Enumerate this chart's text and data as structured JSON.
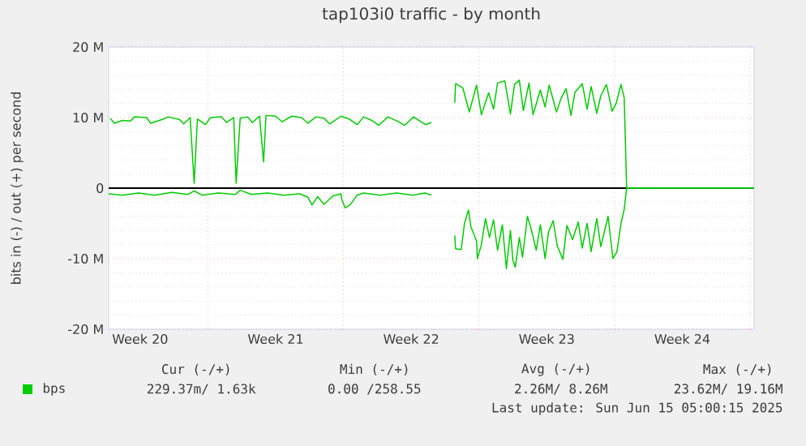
{
  "chart_data": {
    "type": "line",
    "title": "tap103i0 traffic - by month",
    "ylabel": "bits in (-) / out (+) per second",
    "xlim": [
      "2025-05-12T21:00",
      "2025-06-15T05:00"
    ],
    "ylim": [
      -20,
      20
    ],
    "xticks": [
      {
        "value": "2025-05-14T12:00",
        "label": "Week 20"
      },
      {
        "value": "2025-05-21T12:00",
        "label": "Week 21"
      },
      {
        "value": "2025-05-28T12:00",
        "label": "Week 22"
      },
      {
        "value": "2025-06-04T12:00",
        "label": "Week 23"
      },
      {
        "value": "2025-06-11T12:00",
        "label": "Week 24"
      },
      {
        "value": "2025-05-18",
        "label": null
      },
      {
        "value": "2025-05-25",
        "label": null
      },
      {
        "value": "2025-06-01",
        "label": null
      },
      {
        "value": "2025-06-08",
        "label": null
      },
      {
        "value": "2025-06-15",
        "label": null
      }
    ],
    "yticks": [
      {
        "value": -20,
        "label": "-20 M"
      },
      {
        "value": -10,
        "label": "-10 M"
      },
      {
        "value": 0,
        "label": "0"
      },
      {
        "value": 10,
        "label": "10 M"
      },
      {
        "value": 20,
        "label": "20 M"
      }
    ],
    "grid": true,
    "legend": "bottom",
    "ref_lines": [
      {
        "axis": "y",
        "value": 0,
        "color": "#000000"
      }
    ],
    "series": [
      {
        "name": "bps",
        "color": "#00cc00",
        "x": [
          "2025-05-12T23:00",
          "2025-05-13T04:00",
          "2025-05-13T14:00",
          "2025-05-14T00:00",
          "2025-05-14T05:00",
          "2025-05-14T20:00",
          "2025-05-15T01:00",
          "2025-05-15T17:00",
          "2025-05-15T23:00",
          "2025-05-16T13:00",
          "2025-05-16T18:00",
          "2025-05-17T02:00",
          "2025-05-17T07:00",
          "2025-05-17T11:00",
          "2025-05-17T21:00",
          "2025-05-18T03:00",
          "2025-05-18T17:00",
          "2025-05-18T23:00",
          "2025-05-19T08:00",
          "2025-05-19T11:00",
          "2025-05-19T16:00",
          "2025-05-20T01:00",
          "2025-05-20T07:00",
          "2025-05-20T16:00",
          "2025-05-20T21:00",
          "2025-05-21T00:00",
          "2025-05-21T12:00",
          "2025-05-21T20:00",
          "2025-05-22T08:00",
          "2025-05-22T20:00",
          "2025-05-23T04:00",
          "2025-05-23T14:00",
          "2025-05-24T00:00",
          "2025-05-24T07:00",
          "2025-05-24T21:00",
          "2025-05-25T07:00",
          "2025-05-25T17:00",
          "2025-05-26T01:00",
          "2025-05-26T11:00",
          "2025-05-26T20:00",
          "2025-05-27T07:00",
          "2025-05-27T19:00",
          "2025-05-28T04:00",
          "2025-05-28T15:00",
          "2025-05-29T00:00",
          "2025-05-29T06:00",
          "2025-05-29T13:00",
          "2025-05-30T04:00",
          "2025-05-30T18:00",
          "2025-05-30T19:00",
          "2025-05-31T04:00",
          "2025-05-31T12:00",
          "2025-05-31T21:00",
          "2025-06-01T03:00",
          "2025-06-01T12:00",
          "2025-06-01T18:00",
          "2025-06-01T23:00",
          "2025-06-02T08:00",
          "2025-06-02T15:00",
          "2025-06-02T20:00",
          "2025-06-03T02:00",
          "2025-06-03T07:00",
          "2025-06-03T14:00",
          "2025-06-03T19:00",
          "2025-06-04T04:00",
          "2025-06-04T10:00",
          "2025-06-04T15:00",
          "2025-06-05T00:00",
          "2025-06-05T06:00",
          "2025-06-05T12:00",
          "2025-06-05T18:00",
          "2025-06-05T23:00",
          "2025-06-06T08:00",
          "2025-06-06T14:00",
          "2025-06-06T19:00",
          "2025-06-07T02:00",
          "2025-06-07T07:00",
          "2025-06-07T14:00",
          "2025-06-07T21:00",
          "2025-06-08T02:00",
          "2025-06-08T08:00",
          "2025-06-08T12:00",
          "2025-06-08T15:00",
          "2025-06-15T05:00"
        ],
        "values": [
          9.9,
          9.2,
          9.6,
          9.5,
          10.1,
          10.0,
          9.2,
          9.8,
          10.1,
          9.7,
          9.1,
          10.0,
          0.7,
          9.8,
          9.0,
          10.0,
          10.1,
          9.3,
          10.0,
          0.7,
          9.9,
          10.1,
          9.3,
          10.2,
          3.7,
          10.3,
          10.2,
          9.4,
          10.2,
          10.0,
          9.2,
          10.1,
          9.9,
          9.1,
          10.2,
          9.8,
          9.0,
          10.1,
          9.6,
          8.9,
          10.1,
          9.5,
          8.9,
          10.1,
          9.4,
          9.0,
          9.3,
          null,
          12.1,
          14.8,
          14.2,
          10.8,
          14.6,
          10.4,
          13.5,
          11.2,
          14.9,
          15.2,
          10.5,
          14.7,
          15.3,
          11.0,
          14.9,
          10.4,
          13.9,
          11.5,
          14.6,
          10.8,
          12.8,
          14.1,
          10.3,
          13.6,
          14.8,
          11.2,
          14.4,
          10.6,
          13.1,
          14.7,
          10.9,
          12.0,
          14.7,
          12.8,
          0,
          0
        ]
      },
      {
        "color": "#00cc00",
        "x": [
          "2025-05-12T21:00",
          "2025-05-13T14:00",
          "2025-05-14T10:00",
          "2025-05-15T06:00",
          "2025-05-16T03:00",
          "2025-05-16T23:00",
          "2025-05-17T07:00",
          "2025-05-17T17:00",
          "2025-05-18T13:00",
          "2025-05-19T10:00",
          "2025-05-19T16:00",
          "2025-05-20T06:00",
          "2025-05-21T02:00",
          "2025-05-21T22:00",
          "2025-05-22T18:00",
          "2025-05-23T04:00",
          "2025-05-23T09:00",
          "2025-05-23T16:00",
          "2025-05-24T00:00",
          "2025-05-24T11:00",
          "2025-05-24T21:00",
          "2025-05-24T22:00",
          "2025-05-25T02:00",
          "2025-05-25T08:00",
          "2025-05-25T17:00",
          "2025-05-26T01:00",
          "2025-05-26T21:00",
          "2025-05-27T18:00",
          "2025-05-28T14:00",
          "2025-05-29T05:00",
          "2025-05-29T13:00",
          "2025-05-30T04:00",
          "2025-05-30T18:00",
          "2025-05-30T19:00",
          "2025-05-31T02:00",
          "2025-05-31T06:00",
          "2025-05-31T11:00",
          "2025-05-31T14:00",
          "2025-05-31T21:00",
          "2025-05-31T22:00",
          "2025-06-01T03:00",
          "2025-06-01T08:00",
          "2025-06-01T13:00",
          "2025-06-01T18:00",
          "2025-06-01T23:00",
          "2025-06-02T05:00",
          "2025-06-02T10:00",
          "2025-06-02T15:00",
          "2025-06-02T18:00",
          "2025-06-02T21:00",
          "2025-06-03T02:00",
          "2025-06-03T06:00",
          "2025-06-03T12:00",
          "2025-06-03T16:00",
          "2025-06-03T23:00",
          "2025-06-04T04:00",
          "2025-06-04T10:00",
          "2025-06-04T14:00",
          "2025-06-04T20:00",
          "2025-06-05T01:00",
          "2025-06-05T08:00",
          "2025-06-05T13:00",
          "2025-06-05T20:00",
          "2025-06-06T03:00",
          "2025-06-06T08:00",
          "2025-06-06T14:00",
          "2025-06-06T19:00",
          "2025-06-07T02:00",
          "2025-06-07T07:00",
          "2025-06-07T16:00",
          "2025-06-07T22:00",
          "2025-06-08T03:00",
          "2025-06-08T08:00",
          "2025-06-08T12:00",
          "2025-06-08T15:00",
          "2025-06-15T05:00"
        ],
        "values": [
          -0.8,
          -1.0,
          -0.7,
          -1.0,
          -0.6,
          -0.9,
          -0.4,
          -1.0,
          -0.7,
          -0.9,
          -0.3,
          -0.9,
          -0.7,
          -1.0,
          -0.8,
          -1.3,
          -2.4,
          -1.2,
          -2.3,
          -1.1,
          -0.8,
          -1.6,
          -2.8,
          -2.4,
          -1.0,
          -0.7,
          -1.0,
          -0.7,
          -1.0,
          -0.7,
          -1.0,
          null,
          -6.7,
          -8.6,
          -8.7,
          -5.0,
          -3.1,
          -5.5,
          -7.5,
          -10.0,
          -8.0,
          -4.3,
          -7.0,
          -4.5,
          -8.8,
          -5.2,
          -11.4,
          -6.0,
          -10.2,
          -11.2,
          -7.0,
          -9.8,
          -4.0,
          -5.5,
          -8.8,
          -5.2,
          -10.0,
          -6.3,
          -4.6,
          -8.2,
          -10.1,
          -5.3,
          -7.3,
          -4.8,
          -8.5,
          -5.0,
          -9.0,
          -4.3,
          -8.3,
          -4.0,
          -10.0,
          -9.0,
          -5.0,
          -3.0,
          0,
          0
        ]
      }
    ],
    "annotations": [
      "Cur (-/+)",
      "Min (-/+)",
      "Avg (-/+)",
      "Max (-/+)",
      "229.37m/  1.63k",
      "0.00 /258.55",
      "2.26M/  8.26M",
      "23.62M/ 19.16M",
      "Last update: Sun Jun 15 05:00:15 2025"
    ]
  }
}
